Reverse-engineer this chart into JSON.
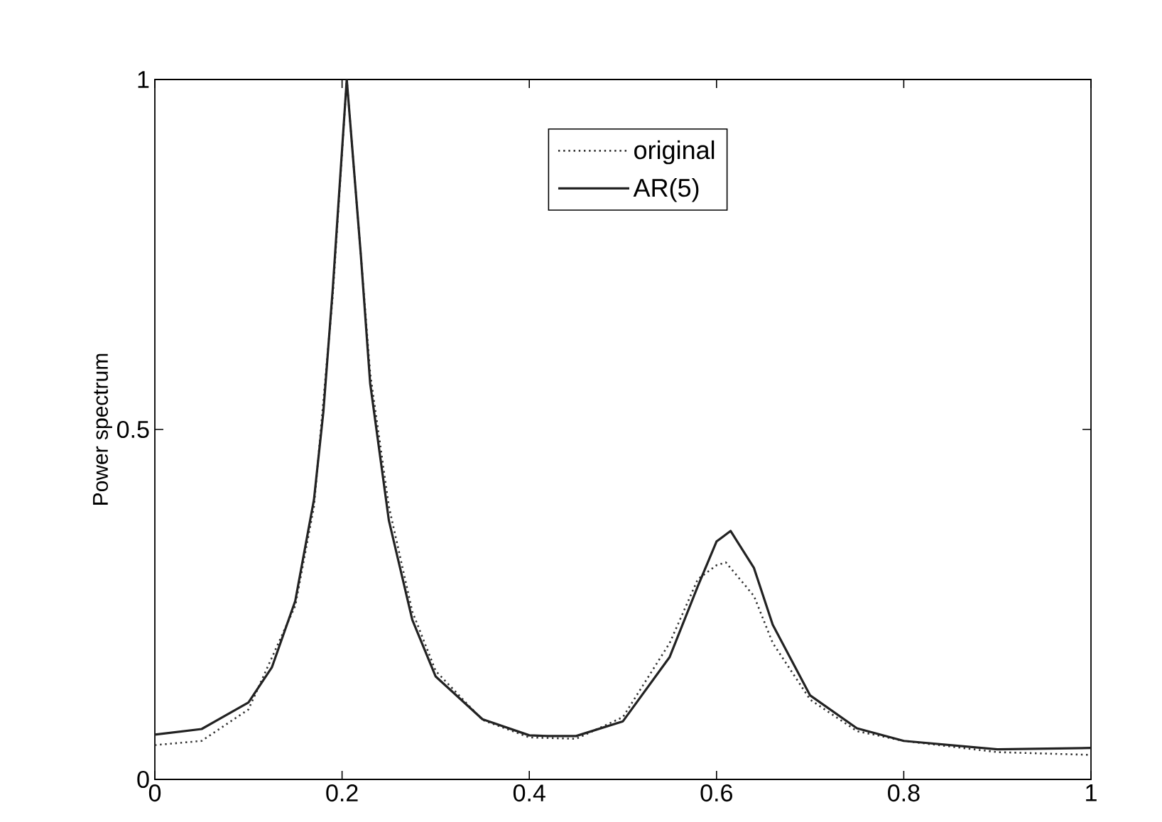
{
  "chart_data": {
    "type": "line",
    "ylabel": "Power spectrum",
    "xlim": [
      0,
      1
    ],
    "ylim": [
      0,
      1
    ],
    "xticks": [
      0,
      0.2,
      0.4,
      0.6,
      0.8,
      1
    ],
    "yticks": [
      0,
      0.5,
      1
    ],
    "legend": "top",
    "grid": false,
    "marker": "none",
    "series": [
      {
        "name": "original",
        "color": "#333333",
        "line_style": "dotted",
        "x": [
          0,
          0.05,
          0.1,
          0.15,
          0.17,
          0.19,
          0.205,
          0.22,
          0.23,
          0.25,
          0.275,
          0.3,
          0.35,
          0.4,
          0.45,
          0.5,
          0.55,
          0.58,
          0.6,
          0.61,
          0.64,
          0.66,
          0.7,
          0.75,
          0.8,
          0.9,
          1
        ],
        "values": [
          0.049,
          0.055,
          0.1,
          0.248,
          0.39,
          0.69,
          1.0,
          0.75,
          0.58,
          0.39,
          0.24,
          0.155,
          0.085,
          0.06,
          0.058,
          0.089,
          0.195,
          0.286,
          0.306,
          0.31,
          0.262,
          0.195,
          0.114,
          0.069,
          0.055,
          0.039,
          0.035
        ]
      },
      {
        "name": "AR(5)",
        "color": "#222222",
        "line_style": "solid",
        "x": [
          0,
          0.05,
          0.1,
          0.125,
          0.15,
          0.17,
          0.18,
          0.19,
          0.205,
          0.22,
          0.23,
          0.25,
          0.275,
          0.3,
          0.35,
          0.4,
          0.42,
          0.45,
          0.5,
          0.55,
          0.58,
          0.6,
          0.615,
          0.64,
          0.66,
          0.7,
          0.75,
          0.8,
          0.9,
          1
        ],
        "values": [
          0.064,
          0.072,
          0.11,
          0.16,
          0.255,
          0.4,
          0.525,
          0.7,
          1.0,
          0.75,
          0.566,
          0.37,
          0.228,
          0.147,
          0.086,
          0.063,
          0.062,
          0.062,
          0.083,
          0.175,
          0.276,
          0.34,
          0.355,
          0.302,
          0.221,
          0.12,
          0.073,
          0.055,
          0.043,
          0.045
        ]
      }
    ]
  }
}
